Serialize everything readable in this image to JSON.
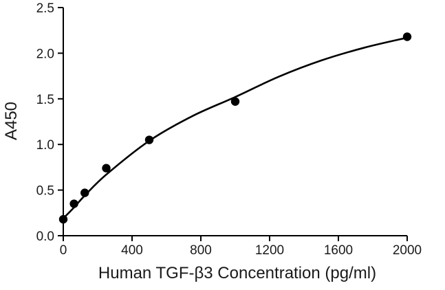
{
  "chart_data": {
    "type": "scatter",
    "title": "",
    "xlabel": "Human TGF-β3 Concentration (pg/ml)",
    "ylabel": "A450",
    "xlim": [
      0,
      2000
    ],
    "ylim": [
      0,
      2.5
    ],
    "x_ticks": [
      "0",
      "400",
      "800",
      "1200",
      "1600",
      "2000"
    ],
    "y_ticks": [
      "0.0",
      "0.5",
      "1.0",
      "1.5",
      "2.0",
      "2.5"
    ],
    "grid": false,
    "legend": "none",
    "series": [
      {
        "x": [
          0,
          62.5,
          125,
          250,
          500,
          1000,
          2000
        ],
        "y": [
          0.18,
          0.35,
          0.47,
          0.74,
          1.05,
          1.47,
          2.18
        ],
        "marker": "circle",
        "color": "#000000"
      }
    ],
    "fit_curve": {
      "x": [
        0,
        62.5,
        125,
        250,
        500,
        750,
        1000,
        1250,
        1500,
        1750,
        2000
      ],
      "y": [
        0.19,
        0.31,
        0.44,
        0.67,
        1.04,
        1.31,
        1.52,
        1.74,
        1.92,
        2.06,
        2.17
      ],
      "color": "#000000"
    }
  }
}
